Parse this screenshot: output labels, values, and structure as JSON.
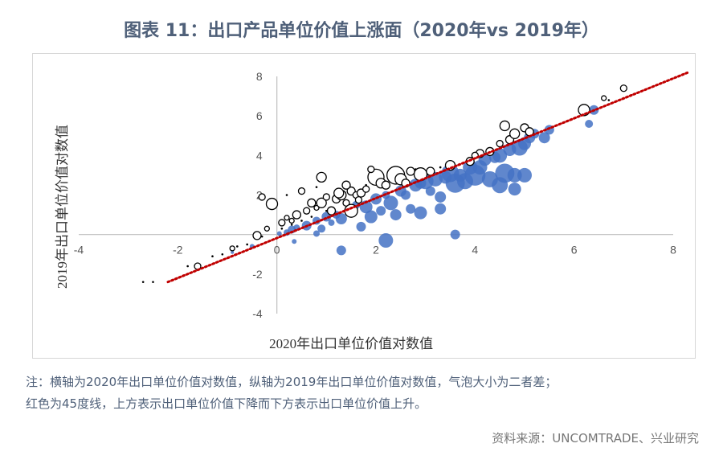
{
  "title": "图表 11：出口产品单位价值上涨面（2020年vs 2019年）",
  "note_line1": "注：横轴为2020年出口单位价值对数值，纵轴为2019年出口单位价值对数值，气泡大小为二者差；",
  "note_line2": "红色为45度线，上方表示出口单位价值下降而下方表示出口单位价值上升。",
  "source": "资料来源：UNCOMTRADE、兴业研究",
  "colors": {
    "title": "#4f6079",
    "blue_bubble": "#4472c4",
    "outline_bubble": "#000000",
    "diagonal": "#c00000",
    "axis": "#bfbfbf"
  },
  "chart_data": {
    "type": "scatter",
    "xlabel": "2020年出口单位价值对数值",
    "ylabel": "2019年出口单位价值对数值",
    "xlim": [
      -4,
      8
    ],
    "ylim": [
      -4,
      8
    ],
    "xticks": [
      -4,
      -2,
      0,
      2,
      4,
      6,
      8
    ],
    "yticks": [
      -4,
      -2,
      2,
      4,
      6,
      8
    ],
    "diagonal_45": {
      "from": [
        -2.2,
        -2.4
      ],
      "to": [
        8.3,
        8.2
      ],
      "style": "dotted"
    },
    "series": [
      {
        "style": "filled-blue",
        "points": [
          [
            0.05,
            0.05,
            3
          ],
          [
            0.2,
            0.1,
            4
          ],
          [
            0.3,
            0.25,
            5
          ],
          [
            0.4,
            0.35,
            4
          ],
          [
            0.6,
            0.45,
            6
          ],
          [
            0.8,
            0.7,
            5
          ],
          [
            1.0,
            0.9,
            6
          ],
          [
            1.2,
            1.0,
            5
          ],
          [
            1.3,
            0.8,
            7
          ],
          [
            1.5,
            1.3,
            6
          ],
          [
            1.6,
            1.5,
            5
          ],
          [
            1.8,
            1.4,
            8
          ],
          [
            2.0,
            1.8,
            7
          ],
          [
            2.1,
            1.2,
            6
          ],
          [
            2.2,
            2.0,
            5
          ],
          [
            2.3,
            1.6,
            9
          ],
          [
            2.5,
            2.2,
            7
          ],
          [
            2.6,
            2.0,
            6
          ],
          [
            2.8,
            2.5,
            8
          ],
          [
            3.0,
            2.7,
            10
          ],
          [
            3.1,
            2.2,
            6
          ],
          [
            3.2,
            2.8,
            9
          ],
          [
            3.3,
            1.9,
            7
          ],
          [
            3.4,
            2.9,
            8
          ],
          [
            3.5,
            3.1,
            11
          ],
          [
            3.6,
            2.6,
            12
          ],
          [
            3.7,
            3.0,
            8
          ],
          [
            3.8,
            2.7,
            10
          ],
          [
            3.9,
            3.4,
            9
          ],
          [
            4.0,
            3.0,
            13
          ],
          [
            4.1,
            3.4,
            9
          ],
          [
            4.2,
            3.8,
            8
          ],
          [
            4.3,
            2.8,
            10
          ],
          [
            4.4,
            3.9,
            7
          ],
          [
            4.5,
            4.0,
            9
          ],
          [
            4.6,
            3.1,
            12
          ],
          [
            4.7,
            4.3,
            8
          ],
          [
            4.8,
            3.0,
            9
          ],
          [
            4.9,
            4.4,
            10
          ],
          [
            5.0,
            4.6,
            8
          ],
          [
            5.1,
            4.9,
            7
          ],
          [
            5.2,
            5.1,
            6
          ],
          [
            5.4,
            4.9,
            7
          ],
          [
            5.5,
            5.3,
            6
          ],
          [
            3.6,
            0.0,
            6
          ],
          [
            2.2,
            -0.3,
            9
          ],
          [
            1.3,
            -0.8,
            6
          ],
          [
            0.8,
            0.05,
            4
          ],
          [
            0.9,
            0.3,
            5
          ],
          [
            1.1,
            0.6,
            4
          ],
          [
            1.9,
            0.9,
            8
          ],
          [
            2.4,
            1.0,
            7
          ],
          [
            2.7,
            1.3,
            6
          ],
          [
            2.9,
            1.1,
            8
          ],
          [
            3.3,
            1.3,
            7
          ],
          [
            4.5,
            2.5,
            10
          ],
          [
            5.0,
            3.0,
            9
          ],
          [
            6.4,
            6.3,
            6
          ],
          [
            6.3,
            5.6,
            5
          ],
          [
            4.8,
            2.3,
            8
          ],
          [
            0.35,
            -0.35,
            3
          ],
          [
            -0.5,
            -0.6,
            3
          ],
          [
            -0.9,
            -0.9,
            2
          ],
          [
            1.7,
            0.4,
            6
          ],
          [
            2.9,
            2.6,
            7
          ]
        ]
      },
      {
        "style": "hollow-black",
        "points": [
          [
            -1.6,
            -1.6,
            4
          ],
          [
            -0.9,
            -0.7,
            3
          ],
          [
            -0.4,
            -0.05,
            5
          ],
          [
            -0.2,
            0.3,
            3
          ],
          [
            0.1,
            0.6,
            4
          ],
          [
            0.2,
            0.85,
            3
          ],
          [
            0.4,
            1.0,
            5
          ],
          [
            0.6,
            1.2,
            4
          ],
          [
            0.8,
            1.35,
            3
          ],
          [
            0.9,
            1.6,
            6
          ],
          [
            1.0,
            1.9,
            4
          ],
          [
            1.1,
            1.2,
            5
          ],
          [
            1.2,
            1.8,
            5
          ],
          [
            1.3,
            2.0,
            6
          ],
          [
            1.4,
            1.6,
            4
          ],
          [
            1.5,
            2.2,
            5
          ],
          [
            1.6,
            2.0,
            4
          ],
          [
            1.7,
            2.1,
            5
          ],
          [
            1.8,
            2.3,
            4
          ],
          [
            2.0,
            2.9,
            10
          ],
          [
            2.1,
            2.6,
            6
          ],
          [
            2.2,
            2.5,
            5
          ],
          [
            2.4,
            3.0,
            11
          ],
          [
            2.5,
            2.8,
            7
          ],
          [
            2.6,
            2.6,
            5
          ],
          [
            2.9,
            3.05,
            8
          ],
          [
            3.1,
            3.2,
            5
          ],
          [
            3.5,
            3.5,
            6
          ],
          [
            3.9,
            3.7,
            5
          ],
          [
            4.1,
            4.1,
            5
          ],
          [
            4.3,
            4.2,
            5
          ],
          [
            4.5,
            4.6,
            4
          ],
          [
            4.7,
            4.8,
            5
          ],
          [
            4.8,
            5.1,
            6
          ],
          [
            5.0,
            5.4,
            5
          ],
          [
            5.1,
            5.2,
            5
          ],
          [
            4.6,
            5.5,
            6
          ],
          [
            6.2,
            6.3,
            7
          ],
          [
            6.6,
            6.9,
            3
          ],
          [
            7.0,
            7.4,
            4
          ],
          [
            -0.1,
            1.55,
            7
          ],
          [
            0.9,
            2.9,
            6
          ],
          [
            1.5,
            1.2,
            8
          ],
          [
            0.5,
            2.2,
            4
          ],
          [
            -0.3,
            1.9,
            4
          ],
          [
            1.4,
            2.5,
            5
          ],
          [
            2.7,
            3.2,
            5
          ],
          [
            1.9,
            3.3,
            4
          ],
          [
            0.7,
            1.6,
            5
          ],
          [
            1.25,
            2.1,
            6
          ],
          [
            1.65,
            1.75,
            4
          ],
          [
            0.3,
            0.7,
            3
          ],
          [
            4.0,
            4.0,
            4
          ]
        ]
      },
      {
        "style": "black-dots",
        "points": [
          [
            -2.7,
            -2.4
          ],
          [
            -2.5,
            -2.4
          ],
          [
            -1.8,
            -1.6
          ],
          [
            -1.3,
            -1.1
          ],
          [
            -1.1,
            -1.0
          ],
          [
            -0.8,
            -0.6
          ],
          [
            -0.6,
            -0.5
          ],
          [
            -0.3,
            -0.1
          ],
          [
            0.1,
            0.3
          ],
          [
            0.3,
            0.5
          ],
          [
            0.5,
            0.7
          ],
          [
            0.7,
            0.9
          ],
          [
            1.0,
            1.2
          ],
          [
            0.2,
            2.0
          ],
          [
            0.8,
            2.4
          ],
          [
            1.8,
            2.5
          ],
          [
            2.8,
            3.3
          ],
          [
            3.3,
            3.4
          ],
          [
            6.7,
            6.8
          ]
        ]
      }
    ]
  }
}
